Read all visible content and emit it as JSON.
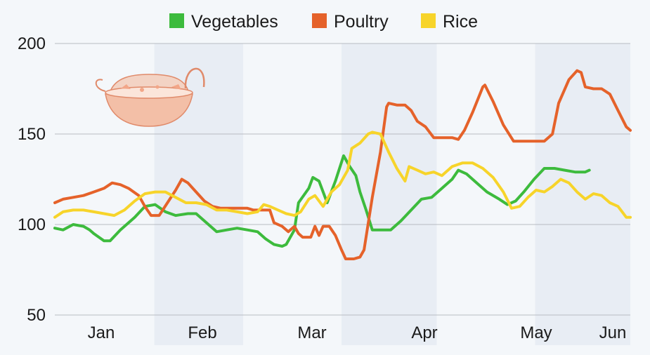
{
  "chart_data": {
    "type": "line",
    "title": "",
    "xlabel": "",
    "ylabel": "",
    "ylim": [
      50,
      200
    ],
    "y_ticks": [
      200,
      150,
      100,
      50
    ],
    "x_ticks": [
      "Jan",
      "Feb",
      "Mar",
      "Apr",
      "May",
      "Jun"
    ],
    "shaded_months": [
      "Feb",
      "Apr",
      "Jun"
    ],
    "grid": true,
    "legend_position": "top-center",
    "illustration": "cooking-pot-icon",
    "colors": {
      "Vegetables": "#3dbb3d",
      "Poultry": "#e5622a",
      "Rice": "#f7d42a",
      "shade": "#e8edf4",
      "background": "#f4f7fa"
    },
    "series": [
      {
        "name": "Vegetables",
        "points": [
          [
            1,
            98
          ],
          [
            5,
            97
          ],
          [
            10,
            100
          ],
          [
            15,
            99
          ],
          [
            18,
            97
          ],
          [
            20,
            95
          ],
          [
            25,
            91
          ],
          [
            28,
            91
          ],
          [
            33,
            97
          ],
          [
            40,
            104
          ],
          [
            45,
            110
          ],
          [
            50,
            111
          ],
          [
            55,
            107
          ],
          [
            60,
            105
          ],
          [
            66,
            106
          ],
          [
            70,
            106
          ],
          [
            75,
            101
          ],
          [
            80,
            96
          ],
          [
            85,
            97
          ],
          [
            90,
            98
          ],
          [
            95,
            97
          ],
          [
            100,
            96
          ],
          [
            104,
            92
          ],
          [
            108,
            89
          ],
          [
            112,
            88
          ],
          [
            114,
            89
          ],
          [
            118,
            97
          ],
          [
            120,
            112
          ],
          [
            125,
            120
          ],
          [
            127,
            126
          ],
          [
            130,
            124
          ],
          [
            134,
            112
          ],
          [
            138,
            124
          ],
          [
            142,
            138
          ],
          [
            145,
            132
          ],
          [
            148,
            127
          ],
          [
            150,
            118
          ],
          [
            153,
            108
          ],
          [
            156,
            97
          ],
          [
            160,
            97
          ],
          [
            165,
            97
          ],
          [
            170,
            102
          ],
          [
            175,
            108
          ],
          [
            180,
            114
          ],
          [
            185,
            115
          ],
          [
            190,
            120
          ],
          [
            195,
            125
          ],
          [
            198,
            130
          ],
          [
            202,
            128
          ],
          [
            207,
            123
          ],
          [
            212,
            118
          ],
          [
            218,
            114
          ],
          [
            222,
            111
          ],
          [
            226,
            113
          ],
          [
            230,
            118
          ],
          [
            235,
            125
          ],
          [
            240,
            131
          ],
          [
            245,
            131
          ],
          [
            250,
            130
          ],
          [
            255,
            129
          ],
          [
            260,
            129
          ],
          [
            262,
            130
          ]
        ]
      },
      {
        "name": "Poultry",
        "points": [
          [
            1,
            112
          ],
          [
            5,
            114
          ],
          [
            10,
            115
          ],
          [
            15,
            116
          ],
          [
            20,
            118
          ],
          [
            25,
            120
          ],
          [
            29,
            123
          ],
          [
            33,
            122
          ],
          [
            37,
            120
          ],
          [
            42,
            116
          ],
          [
            45,
            110
          ],
          [
            48,
            105
          ],
          [
            52,
            105
          ],
          [
            56,
            112
          ],
          [
            60,
            119
          ],
          [
            63,
            125
          ],
          [
            66,
            123
          ],
          [
            70,
            118
          ],
          [
            74,
            113
          ],
          [
            78,
            110
          ],
          [
            82,
            109
          ],
          [
            88,
            109
          ],
          [
            95,
            109
          ],
          [
            98,
            108
          ],
          [
            102,
            108
          ],
          [
            106,
            108
          ],
          [
            108,
            101
          ],
          [
            112,
            99
          ],
          [
            115,
            96
          ],
          [
            118,
            99
          ],
          [
            120,
            95
          ],
          [
            122,
            93
          ],
          [
            126,
            93
          ],
          [
            128,
            99
          ],
          [
            130,
            94
          ],
          [
            132,
            99
          ],
          [
            135,
            99
          ],
          [
            138,
            94
          ],
          [
            141,
            86
          ],
          [
            143,
            81
          ],
          [
            147,
            81
          ],
          [
            150,
            82
          ],
          [
            152,
            86
          ],
          [
            156,
            115
          ],
          [
            160,
            140
          ],
          [
            163,
            165
          ],
          [
            164,
            167
          ],
          [
            168,
            166
          ],
          [
            172,
            166
          ],
          [
            175,
            163
          ],
          [
            178,
            157
          ],
          [
            182,
            154
          ],
          [
            186,
            148
          ],
          [
            190,
            148
          ],
          [
            195,
            148
          ],
          [
            198,
            147
          ],
          [
            201,
            152
          ],
          [
            205,
            162
          ],
          [
            210,
            176
          ],
          [
            211,
            177
          ],
          [
            215,
            168
          ],
          [
            220,
            155
          ],
          [
            225,
            146
          ],
          [
            230,
            146
          ],
          [
            235,
            146
          ],
          [
            240,
            146
          ],
          [
            244,
            150
          ],
          [
            247,
            167
          ],
          [
            252,
            180
          ],
          [
            256,
            185
          ],
          [
            258,
            184
          ],
          [
            260,
            176
          ],
          [
            264,
            175
          ],
          [
            268,
            175
          ],
          [
            272,
            172
          ],
          [
            276,
            163
          ],
          [
            280,
            154
          ],
          [
            282,
            152
          ]
        ]
      },
      {
        "name": "Rice",
        "points": [
          [
            1,
            104
          ],
          [
            5,
            107
          ],
          [
            10,
            108
          ],
          [
            15,
            108
          ],
          [
            20,
            107
          ],
          [
            25,
            106
          ],
          [
            30,
            105
          ],
          [
            35,
            108
          ],
          [
            40,
            113
          ],
          [
            45,
            117
          ],
          [
            50,
            118
          ],
          [
            55,
            118
          ],
          [
            60,
            115
          ],
          [
            65,
            112
          ],
          [
            70,
            112
          ],
          [
            75,
            111
          ],
          [
            80,
            108
          ],
          [
            85,
            108
          ],
          [
            90,
            107
          ],
          [
            95,
            106
          ],
          [
            100,
            107
          ],
          [
            103,
            111
          ],
          [
            106,
            110
          ],
          [
            110,
            108
          ],
          [
            114,
            106
          ],
          [
            118,
            105
          ],
          [
            121,
            107
          ],
          [
            125,
            114
          ],
          [
            128,
            116
          ],
          [
            132,
            110
          ],
          [
            136,
            118
          ],
          [
            140,
            122
          ],
          [
            144,
            130
          ],
          [
            146,
            142
          ],
          [
            150,
            145
          ],
          [
            154,
            150
          ],
          [
            156,
            151
          ],
          [
            160,
            150
          ],
          [
            164,
            140
          ],
          [
            168,
            131
          ],
          [
            172,
            124
          ],
          [
            174,
            132
          ],
          [
            178,
            130
          ],
          [
            182,
            128
          ],
          [
            186,
            129
          ],
          [
            190,
            127
          ],
          [
            195,
            132
          ],
          [
            200,
            134
          ],
          [
            205,
            134
          ],
          [
            210,
            131
          ],
          [
            215,
            126
          ],
          [
            220,
            118
          ],
          [
            224,
            109
          ],
          [
            228,
            110
          ],
          [
            232,
            115
          ],
          [
            236,
            119
          ],
          [
            240,
            118
          ],
          [
            244,
            121
          ],
          [
            248,
            125
          ],
          [
            252,
            123
          ],
          [
            256,
            118
          ],
          [
            260,
            114
          ],
          [
            264,
            117
          ],
          [
            268,
            116
          ],
          [
            272,
            112
          ],
          [
            276,
            110
          ],
          [
            280,
            104
          ],
          [
            282,
            104
          ]
        ]
      }
    ]
  }
}
